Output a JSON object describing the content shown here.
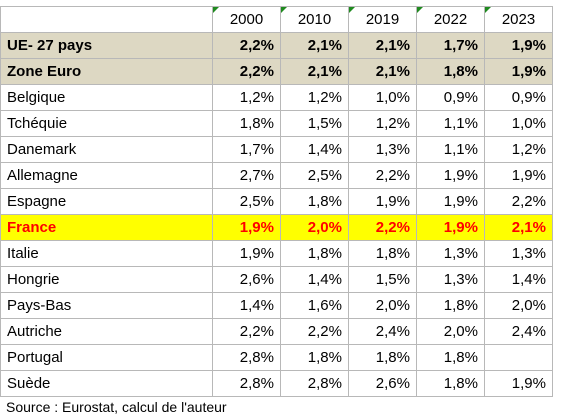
{
  "table": {
    "years": [
      "2000",
      "2010",
      "2019",
      "2022",
      "2023"
    ],
    "rows": [
      {
        "label": "UE- 27 pays",
        "values": [
          "2,2%",
          "2,1%",
          "2,1%",
          "1,7%",
          "1,9%"
        ],
        "style": "summary"
      },
      {
        "label": "Zone Euro",
        "values": [
          "2,2%",
          "2,1%",
          "2,1%",
          "1,8%",
          "1,9%"
        ],
        "style": "summary"
      },
      {
        "label": "Belgique",
        "values": [
          "1,2%",
          "1,2%",
          "1,0%",
          "0,9%",
          "0,9%"
        ],
        "style": "plain"
      },
      {
        "label": "Tchéquie",
        "values": [
          "1,8%",
          "1,5%",
          "1,2%",
          "1,1%",
          "1,0%"
        ],
        "style": "plain"
      },
      {
        "label": "Danemark",
        "values": [
          "1,7%",
          "1,4%",
          "1,3%",
          "1,1%",
          "1,2%"
        ],
        "style": "plain"
      },
      {
        "label": "Allemagne",
        "values": [
          "2,7%",
          "2,5%",
          "2,2%",
          "1,9%",
          "1,9%"
        ],
        "style": "plain"
      },
      {
        "label": "Espagne",
        "values": [
          "2,5%",
          "1,8%",
          "1,9%",
          "1,9%",
          "2,2%"
        ],
        "style": "plain"
      },
      {
        "label": "France",
        "values": [
          "1,9%",
          "2,0%",
          "2,2%",
          "1,9%",
          "2,1%"
        ],
        "style": "highlight"
      },
      {
        "label": "Italie",
        "values": [
          "1,9%",
          "1,8%",
          "1,8%",
          "1,3%",
          "1,3%"
        ],
        "style": "plain"
      },
      {
        "label": "Hongrie",
        "values": [
          "2,6%",
          "1,4%",
          "1,5%",
          "1,3%",
          "1,4%"
        ],
        "style": "plain"
      },
      {
        "label": "Pays-Bas",
        "values": [
          "1,4%",
          "1,6%",
          "2,0%",
          "1,8%",
          "2,0%"
        ],
        "style": "plain"
      },
      {
        "label": "Autriche",
        "values": [
          "2,2%",
          "2,2%",
          "2,4%",
          "2,0%",
          "2,4%"
        ],
        "style": "plain"
      },
      {
        "label": "Portugal",
        "values": [
          "2,8%",
          "1,8%",
          "1,8%",
          "1,8%",
          ""
        ],
        "style": "plain"
      },
      {
        "label": "Suède",
        "values": [
          "2,8%",
          "2,8%",
          "2,6%",
          "1,8%",
          "1,9%"
        ],
        "style": "plain"
      }
    ]
  },
  "source": "Source : Eurostat, calcul de l'auteur",
  "colors": {
    "summary_bg": "#ddd8c3",
    "highlight_bg": "#ffff00",
    "highlight_text": "#ff0000",
    "header_flag": "#1f8a1f",
    "gridline": "#b8b8b8"
  }
}
